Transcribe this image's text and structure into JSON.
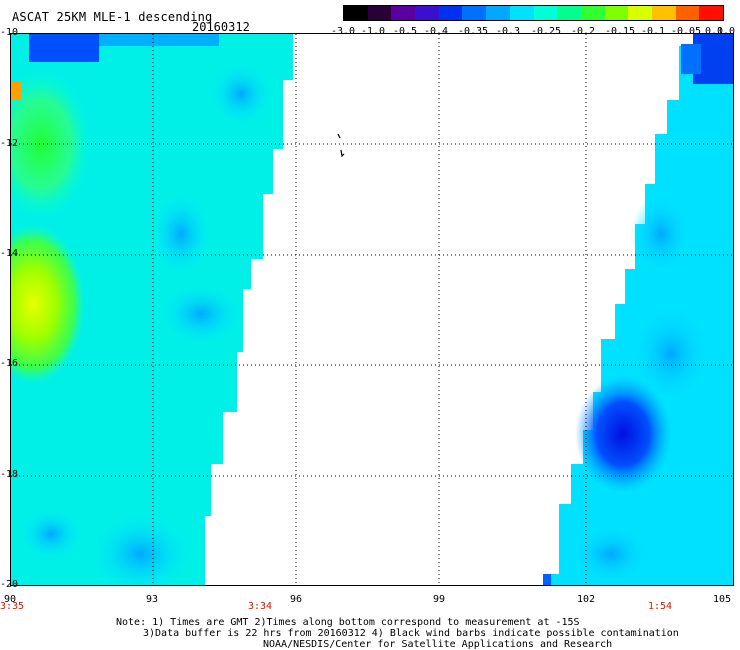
{
  "header": {
    "title": "ASCAT 25KM MLE-1 descending",
    "date": "20160312"
  },
  "colorbar": {
    "ticks": [
      "-3.0",
      "-1.0",
      "-0.5",
      "-0.4",
      "-0.35",
      "-0.3",
      "-0.25",
      "-0.2",
      "-0.15",
      "-0.1",
      "-0.05",
      "0.0",
      "1.0"
    ],
    "colors": [
      "#000000",
      "#2a0038",
      "#5a00a0",
      "#3a10d0",
      "#0030f0",
      "#0070ff",
      "#00a8ff",
      "#00e0ff",
      "#00ffd8",
      "#00ff90",
      "#30ff30",
      "#80ff00",
      "#d8ff00",
      "#ffc000",
      "#ff6000",
      "#ff1000"
    ]
  },
  "map": {
    "lat_labels": [
      "-10",
      "-12",
      "-14",
      "-16",
      "-18",
      "-20"
    ],
    "lon_labels": [
      "90",
      "93",
      "96",
      "99",
      "102",
      "105"
    ],
    "time_labels": [
      "3:35",
      "3:34",
      "1:54"
    ],
    "background": "#ffffff",
    "dot_grid_color": "#000000"
  },
  "notes": {
    "line1": "Note: 1) Times are GMT 2)Times along bottom correspond to measurement at -15S",
    "line2": "3)Data buffer is 22 hrs from 20160312 4) Black wind barbs indicate possible contamination",
    "line3": "NOAA/NESDIS/Center for Satellite Applications and Research"
  }
}
